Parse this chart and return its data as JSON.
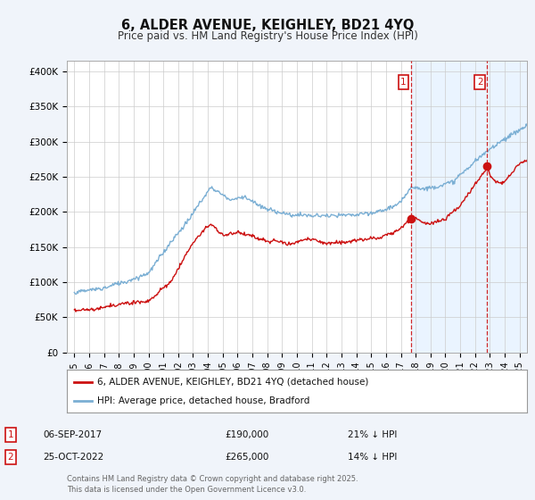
{
  "title": "6, ALDER AVENUE, KEIGHLEY, BD21 4YQ",
  "subtitle": "Price paid vs. HM Land Registry's House Price Index (HPI)",
  "ylabel_ticks": [
    "£0",
    "£50K",
    "£100K",
    "£150K",
    "£200K",
    "£250K",
    "£300K",
    "£350K",
    "£400K"
  ],
  "ytick_values": [
    0,
    50000,
    100000,
    150000,
    200000,
    250000,
    300000,
    350000,
    400000
  ],
  "ylim": [
    0,
    415000
  ],
  "xlim_start": 1994.5,
  "xlim_end": 2025.5,
  "hpi_color": "#7bafd4",
  "price_color": "#cc1111",
  "marker1_date": 2017.68,
  "marker1_price": 190000,
  "marker1_label": "06-SEP-2017",
  "marker1_amount": "£190,000",
  "marker1_hpi_pct": "21% ↓ HPI",
  "marker2_date": 2022.82,
  "marker2_price": 265000,
  "marker2_label": "25-OCT-2022",
  "marker2_amount": "£265,000",
  "marker2_hpi_pct": "14% ↓ HPI",
  "legend_price_label": "6, ALDER AVENUE, KEIGHLEY, BD21 4YQ (detached house)",
  "legend_hpi_label": "HPI: Average price, detached house, Bradford",
  "footer": "Contains HM Land Registry data © Crown copyright and database right 2025.\nThis data is licensed under the Open Government Licence v3.0.",
  "background_color": "#f0f4fa",
  "plot_bg_color": "#ffffff",
  "highlight_bg": "#ddeeff",
  "vline_color": "#cc1111",
  "grid_color": "#cccccc",
  "num1_color": "#cc1111",
  "num2_color": "#cc1111"
}
